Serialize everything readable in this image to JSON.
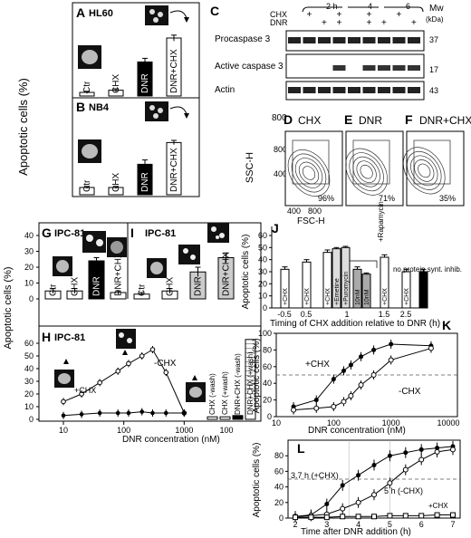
{
  "panels": {
    "A": {
      "letter": "A",
      "cell": "HL60",
      "cats": [
        "Ctr",
        "CHX",
        "DNR",
        "DNR+CHX"
      ],
      "values": [
        5,
        8,
        47,
        80
      ],
      "err": [
        1.5,
        2,
        5,
        4
      ],
      "fills": [
        "#fff",
        "#fff",
        "#000",
        "#fff"
      ],
      "ylim": [
        0,
        100
      ],
      "ylabel": "Apoptotic cells (%)"
    },
    "B": {
      "letter": "B",
      "cell": "NB4",
      "cats": [
        "Ctr",
        "CHX",
        "DNR",
        "DNR+CHX"
      ],
      "values": [
        10,
        10,
        42,
        72
      ],
      "err": [
        1.5,
        1.5,
        6,
        3
      ],
      "fills": [
        "#fff",
        "#fff",
        "#000",
        "#fff"
      ],
      "ylim": [
        0,
        100
      ]
    },
    "C": {
      "letter": "C",
      "time_headers": [
        "2 h",
        "4",
        "6"
      ],
      "row_labels": [
        "CHX",
        "DNR"
      ],
      "signs": {
        "CHX": [
          "",
          "+",
          "",
          "+",
          "",
          "+",
          "",
          "+",
          ""
        ],
        "DNR": [
          "",
          "",
          "+",
          "+",
          "",
          "+",
          "+",
          "",
          "+"
        ]
      },
      "bands": [
        "Procaspase 3",
        "Active caspase 3",
        "Actin"
      ],
      "mw_label": "Mw",
      "mw_unit": "(kDa)",
      "mw": [
        "37",
        "17",
        "43"
      ]
    },
    "D": {
      "letter": "D",
      "title": "CHX",
      "pct": "96%",
      "ylabel": "SSC-H",
      "xlabel": "FSC-H",
      "ytick": "800",
      "yticks": [
        "800",
        "400"
      ],
      "xticks": [
        "400",
        "800"
      ]
    },
    "E": {
      "letter": "E",
      "title": "DNR",
      "pct": "71%"
    },
    "F": {
      "letter": "F",
      "title": "DNR+CHX",
      "pct": "35%"
    },
    "G": {
      "letter": "G",
      "cell": "IPC-81",
      "cats": [
        "Ctr",
        "CHX",
        "DNR",
        "DNR+CHX"
      ],
      "values": [
        5,
        5,
        24,
        4
      ],
      "err": [
        1.5,
        1.5,
        2,
        1
      ],
      "fills": [
        "#fff",
        "#fff",
        "#000",
        "#fff"
      ],
      "ylim": [
        0,
        40
      ],
      "yticks": [
        "0",
        "10",
        "20",
        "30",
        "40"
      ],
      "ylabel": "Apoptotic cells (%)"
    },
    "I": {
      "letter": "I",
      "cell": "IPC-81",
      "cats": [
        "Ctr",
        "CHX",
        "DNR",
        "DNR+CHX"
      ],
      "values": [
        3,
        5,
        17,
        26
      ],
      "err": [
        1,
        1.5,
        3,
        3
      ],
      "fills": [
        "#fff",
        "#fff",
        "#ccc",
        "#ccc"
      ],
      "ylim": [
        0,
        40
      ]
    },
    "H": {
      "letter": "H",
      "cell": "IPC-81",
      "ylabel": "Apoptotic cells (%)",
      "xlabel": "DNR concentration (nM)",
      "yticks": [
        "0",
        "10",
        "20",
        "30",
        "40",
        "50",
        "60"
      ],
      "xticks": [
        "10",
        "100",
        "1000"
      ],
      "curve_minus": "-CHX",
      "curve_plus": "+CHX",
      "bar_labels": [
        "CHX (-wash)",
        "CHX (+wash)",
        "DNR+CHX (-wash)",
        "DNR+CHX (+wash)"
      ],
      "bar_values": [
        2,
        2,
        3,
        63
      ],
      "bar_xlabel": "100"
    },
    "J": {
      "letter": "J",
      "ylabel": "Apoptotic cells (%)",
      "xlabel": "Timing of CHX addition relative to DNR (h)",
      "yticks": [
        "0",
        "10",
        "20",
        "30",
        "40",
        "50",
        "60"
      ],
      "xticks": [
        "-0.5",
        "0.5",
        "1",
        "1.5",
        "2.5"
      ],
      "bar_texts": [
        "+CHX",
        "+CHX",
        "+CHX",
        "+Emetine",
        "+Puromycin",
        "10nM",
        "10nM",
        "+CHX",
        "+CHX",
        "no protein synt. inhib."
      ],
      "rapamycin": "+Rapamycin",
      "values": [
        32,
        38,
        46,
        49,
        50,
        32,
        28,
        42,
        30,
        30
      ],
      "err": [
        2,
        2,
        2,
        1,
        1,
        2,
        1,
        2,
        2,
        2
      ],
      "ylim": [
        0,
        60
      ]
    },
    "K": {
      "letter": "K",
      "ylabel": "Apoptotic cells (%)",
      "xlabel": "DNR concentration (nM)",
      "yticks": [
        "0",
        "20",
        "40",
        "60",
        "80",
        "100"
      ],
      "xticks": [
        "10",
        "100",
        "1000",
        "10000"
      ],
      "lab_plus": "+CHX",
      "lab_minus": "-CHX"
    },
    "L": {
      "letter": "L",
      "ylabel": "Apoptotic cells (%)",
      "xlabel": "Time after DNR addition (h)",
      "yticks": [
        "0",
        "20",
        "40",
        "60",
        "80"
      ],
      "xticks": [
        "2",
        "3",
        "4",
        "5",
        "6",
        "7"
      ],
      "annot1": "3.7 h (+CHX)",
      "annot2": "5 h (-CHX)",
      "lab_plus": "+CHX"
    }
  },
  "chart_data": [
    {
      "type": "bar",
      "panel": "A",
      "title": "HL60",
      "categories": [
        "Ctr",
        "CHX",
        "DNR",
        "DNR+CHX"
      ],
      "values": [
        5,
        8,
        47,
        80
      ],
      "ylabel": "Apoptotic cells (%)",
      "ylim": [
        0,
        100
      ]
    },
    {
      "type": "bar",
      "panel": "B",
      "title": "NB4",
      "categories": [
        "Ctr",
        "CHX",
        "DNR",
        "DNR+CHX"
      ],
      "values": [
        10,
        10,
        42,
        72
      ],
      "ylim": [
        0,
        100
      ]
    },
    {
      "type": "bar",
      "panel": "G",
      "title": "IPC-81",
      "categories": [
        "Ctr",
        "CHX",
        "DNR",
        "DNR+CHX"
      ],
      "values": [
        5,
        5,
        24,
        4
      ],
      "ylabel": "Apoptotic cells (%)",
      "ylim": [
        0,
        40
      ]
    },
    {
      "type": "bar",
      "panel": "I",
      "title": "IPC-81",
      "categories": [
        "Ctr",
        "CHX",
        "DNR",
        "DNR+CHX"
      ],
      "values": [
        3,
        5,
        17,
        26
      ],
      "ylim": [
        0,
        40
      ]
    },
    {
      "type": "line",
      "panel": "H",
      "title": "IPC-81",
      "xlabel": "DNR concentration (nM)",
      "ylabel": "Apoptotic cells (%)",
      "xscale": "log",
      "ylim": [
        0,
        60
      ],
      "series": [
        {
          "name": "-CHX",
          "x": [
            10,
            20,
            40,
            80,
            120,
            200,
            300,
            500,
            1000
          ],
          "y": [
            14,
            20,
            29,
            38,
            44,
            50,
            55,
            37,
            5
          ]
        },
        {
          "name": "+CHX",
          "x": [
            10,
            20,
            40,
            80,
            120,
            200,
            300,
            500,
            1000
          ],
          "y": [
            3,
            4,
            5,
            5,
            5,
            6,
            5,
            5,
            5
          ]
        }
      ]
    },
    {
      "type": "bar",
      "panel": "H-inset",
      "categories": [
        "CHX (-wash)",
        "CHX (+wash)",
        "DNR+CHX (-wash)",
        "DNR+CHX (+wash)"
      ],
      "values": [
        2,
        2,
        3,
        63
      ]
    },
    {
      "type": "bar",
      "panel": "J",
      "xlabel": "Timing of CHX addition relative to DNR (h)",
      "ylabel": "Apoptotic cells (%)",
      "categories": [
        "-0.5",
        "0.5",
        "1",
        "1",
        "1",
        "1",
        "1",
        "1.5",
        "2.5",
        "no protein synt. inhib."
      ],
      "values": [
        32,
        38,
        46,
        49,
        50,
        32,
        28,
        42,
        30,
        30
      ],
      "ylim": [
        0,
        60
      ]
    },
    {
      "type": "scatter",
      "panel": "K",
      "xlabel": "DNR concentration (nM)",
      "ylabel": "Apoptotic cells (%)",
      "xscale": "log",
      "ylim": [
        0,
        100
      ],
      "series": [
        {
          "name": "+CHX",
          "x": [
            20,
            50,
            100,
            150,
            200,
            300,
            500,
            1000,
            5000
          ],
          "y": [
            12,
            20,
            45,
            55,
            62,
            72,
            80,
            87,
            85
          ]
        },
        {
          "name": "-CHX",
          "x": [
            20,
            50,
            100,
            150,
            200,
            300,
            500,
            1000,
            5000
          ],
          "y": [
            8,
            10,
            12,
            18,
            25,
            38,
            50,
            68,
            82
          ]
        }
      ]
    },
    {
      "type": "scatter",
      "panel": "L",
      "xlabel": "Time after DNR addition (h)",
      "ylabel": "Apoptotic cells (%)",
      "ylim": [
        0,
        100
      ],
      "series": [
        {
          "name": "+CHX",
          "x": [
            2,
            2.5,
            3,
            3.5,
            4,
            4.5,
            5,
            5.5,
            6,
            6.5,
            7
          ],
          "y": [
            2,
            4,
            18,
            42,
            55,
            68,
            80,
            84,
            88,
            90,
            92
          ]
        },
        {
          "name": "-CHX",
          "x": [
            2,
            2.5,
            3,
            3.5,
            4,
            4.5,
            5,
            5.5,
            6,
            6.5,
            7
          ],
          "y": [
            2,
            3,
            5,
            12,
            20,
            30,
            45,
            62,
            75,
            85,
            88
          ]
        },
        {
          "name": "+CHX (open squares)",
          "x": [
            2,
            2.5,
            3,
            3.5,
            4,
            4.5,
            5,
            5.5,
            6,
            6.5,
            7
          ],
          "y": [
            1,
            1,
            1,
            2,
            2,
            2,
            3,
            3,
            3,
            4,
            4
          ]
        }
      ]
    }
  ]
}
